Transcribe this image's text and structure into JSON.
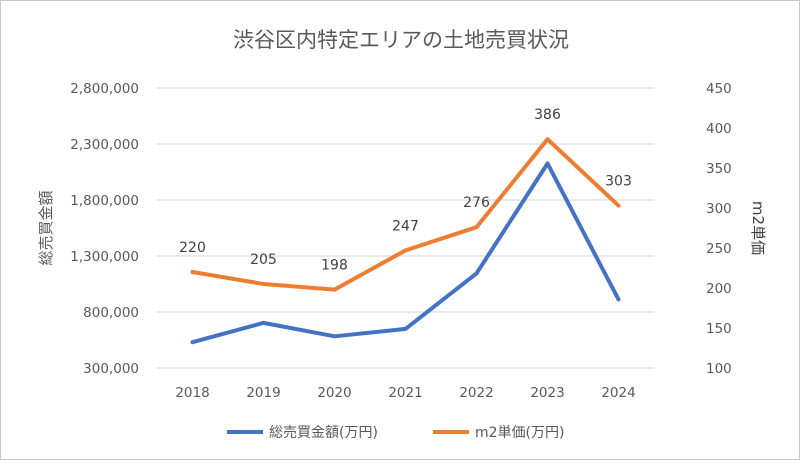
{
  "chart_data": {
    "type": "line",
    "title": "渋谷区内特定エリアの土地売買状況",
    "categories": [
      "2018",
      "2019",
      "2020",
      "2021",
      "2022",
      "2023",
      "2024"
    ],
    "ylabel": "総売買金額",
    "y2label": "m2単価",
    "ylim": [
      300000,
      2800000
    ],
    "y_ticks": [
      "300,000",
      "800,000",
      "1,300,000",
      "1,800,000",
      "2,300,000",
      "2,800,000"
    ],
    "y2lim": [
      100,
      450
    ],
    "y2_ticks": [
      "100",
      "150",
      "200",
      "250",
      "300",
      "350",
      "400",
      "450"
    ],
    "grid": true,
    "legend_position": "bottom",
    "series": [
      {
        "name": "総売買金額(万円)",
        "axis": "left",
        "color": "#4472C4",
        "values": [
          530000,
          703000,
          583000,
          649000,
          1144000,
          2126000,
          912000
        ]
      },
      {
        "name": "m2単価(万円)",
        "axis": "right",
        "color": "#ED7D31",
        "values": [
          220,
          205,
          198,
          247,
          276,
          386,
          303
        ],
        "data_labels": [
          "220",
          "205",
          "198",
          "247",
          "276",
          "386",
          "303"
        ]
      }
    ]
  }
}
